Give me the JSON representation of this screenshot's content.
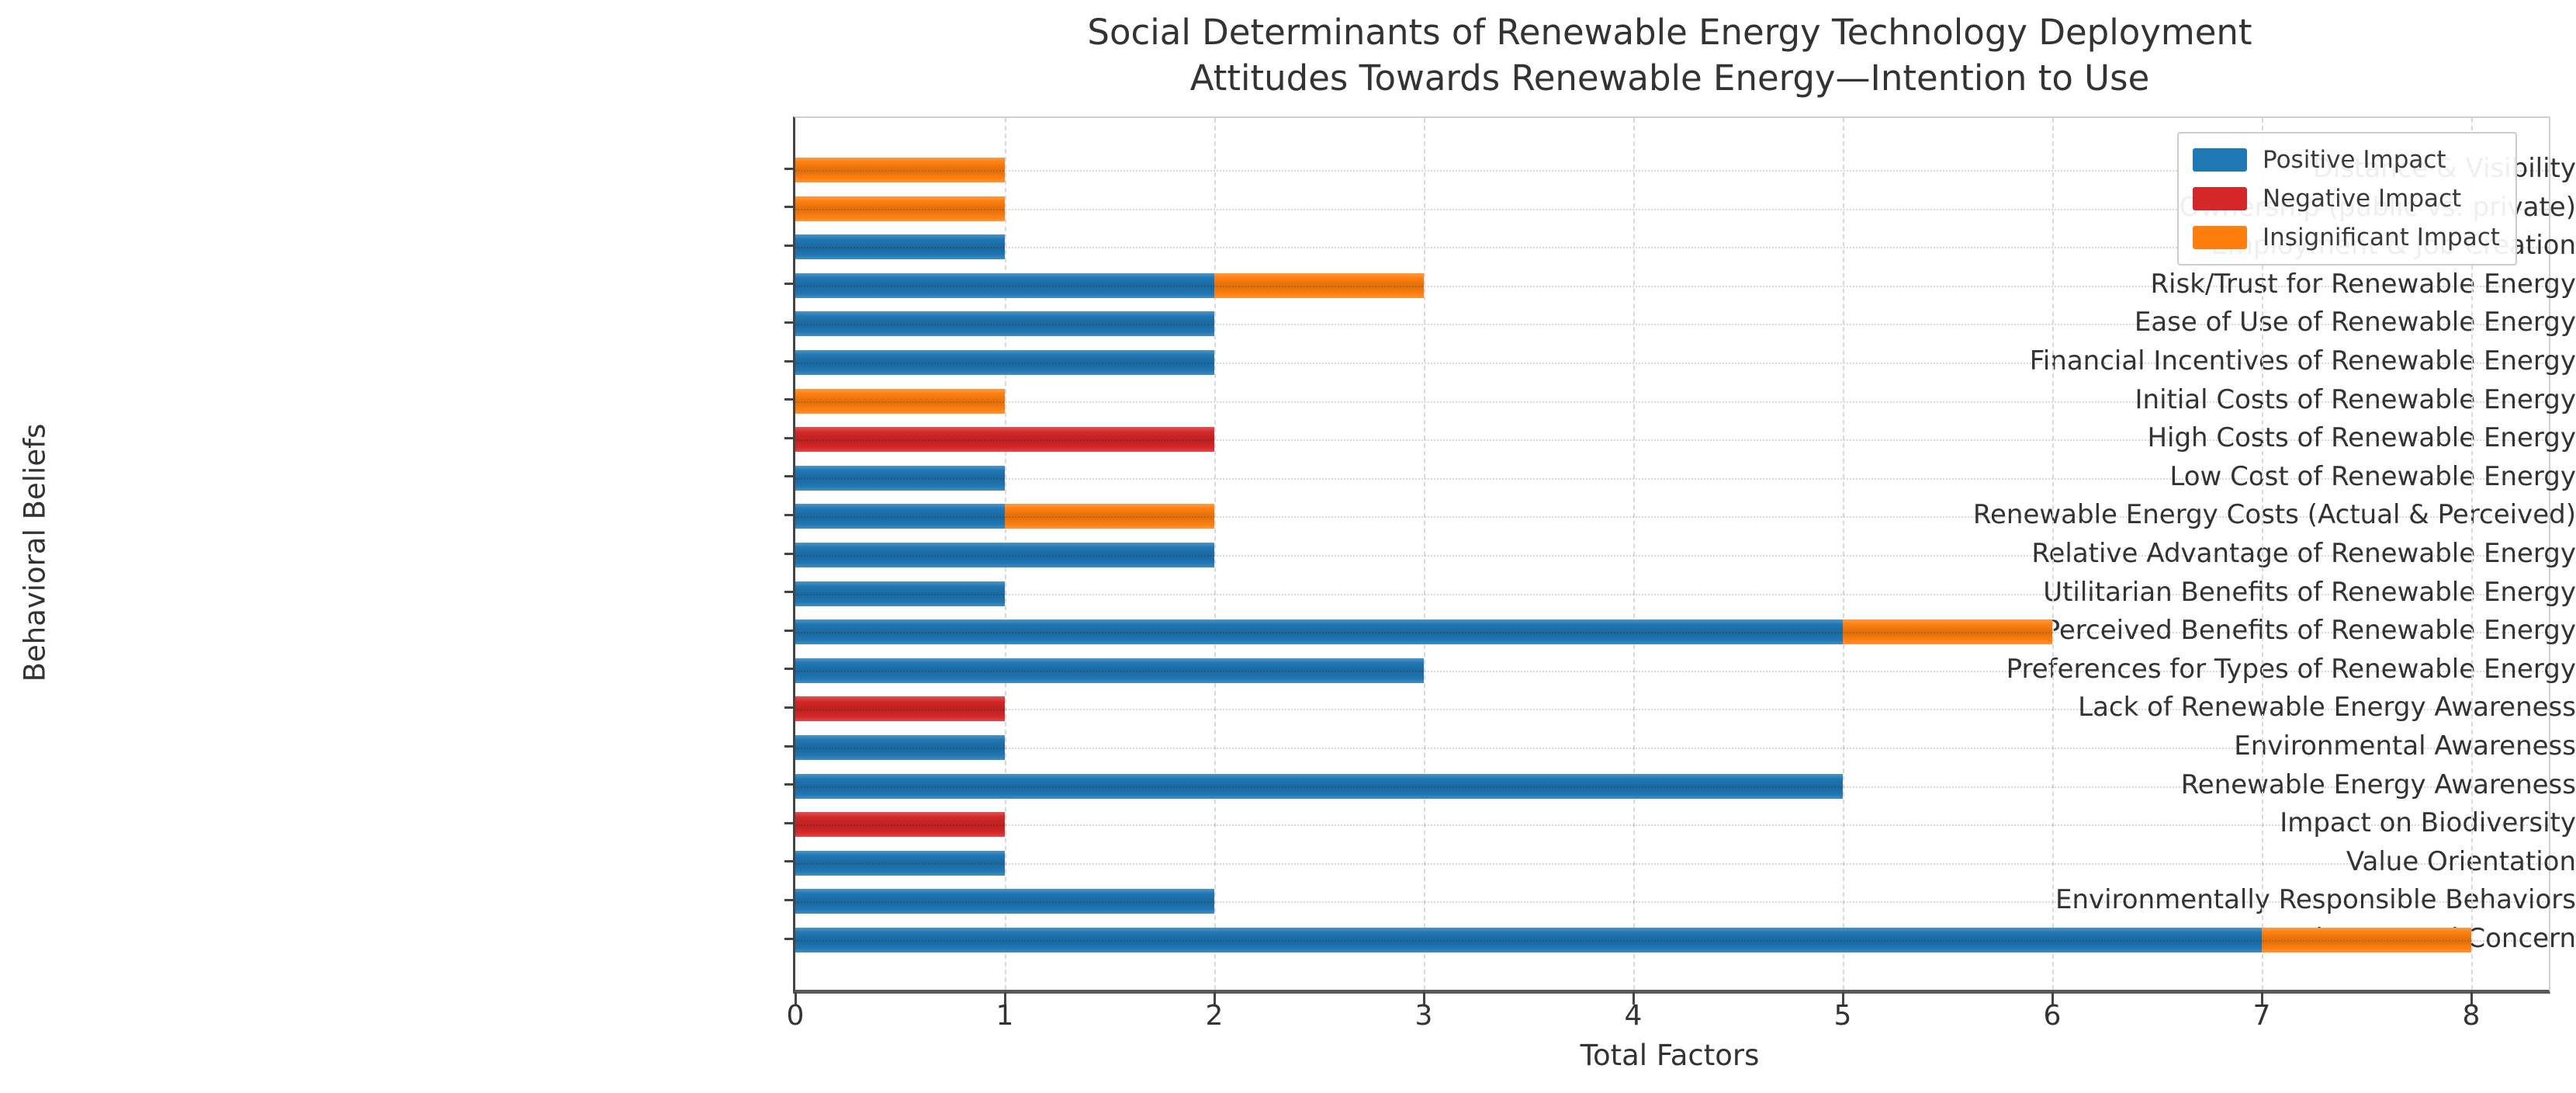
{
  "figure": {
    "title_line1": "Social Determinants of Renewable Energy Technology Deployment",
    "title_line2": "Attitudes Towards Renewable Energy—Intention to Use",
    "xlabel": "Total Factors",
    "ylabel": "Behavioral Beliefs"
  },
  "chart_data": {
    "type": "bar",
    "orientation": "horizontal",
    "stacked": true,
    "title": "Social Determinants of Renewable Energy Technology Deployment\nAttitudes Towards Renewable Energy—Intention to Use",
    "xlabel": "Total Factors",
    "ylabel": "Behavioral Beliefs",
    "xlim": [
      0,
      8.37
    ],
    "xticks": [
      0,
      1,
      2,
      3,
      4,
      5,
      6,
      7,
      8
    ],
    "grid": true,
    "legend_position": "upper right",
    "categories": [
      "Distance & Visibility",
      "Ownership (public vs. private)",
      "Employment & Job Creation",
      "Risk/Trust for Renewable Energy",
      "Ease of Use of Renewable Energy",
      "Financial Incentives of Renewable Energy",
      "Initial Costs of Renewable Energy",
      "High Costs of Renewable Energy",
      "Low Cost of Renewable Energy",
      "Renewable Energy Costs (Actual & Perceived)",
      "Relative Advantage of Renewable Energy",
      "Utilitarian Benefits of Renewable Energy",
      "Perceived Benefits of Renewable Energy",
      "Preferences for Types of Renewable Energy",
      "Lack of Renewable Energy Awareness",
      "Environmental Awareness",
      "Renewable Energy Awareness",
      "Impact on Biodiversity",
      "Value Orientation",
      "Environmentally Responsible Behaviors",
      "Environmental Concern"
    ],
    "series": [
      {
        "name": "Positive Impact",
        "color": "#1f77b4",
        "values": [
          0,
          0,
          1,
          2,
          2,
          2,
          0,
          0,
          1,
          1,
          2,
          1,
          5,
          3,
          0,
          1,
          5,
          0,
          1,
          2,
          7
        ]
      },
      {
        "name": "Negative Impact",
        "color": "#d62728",
        "values": [
          0,
          0,
          0,
          0,
          0,
          0,
          0,
          2,
          0,
          0,
          0,
          0,
          0,
          0,
          1,
          0,
          0,
          1,
          0,
          0,
          0
        ]
      },
      {
        "name": "Insignificant Impact",
        "color": "#ff7f0e",
        "values": [
          1,
          1,
          0,
          1,
          0,
          0,
          1,
          0,
          0,
          1,
          0,
          0,
          1,
          0,
          0,
          0,
          0,
          0,
          0,
          0,
          1
        ]
      }
    ]
  }
}
